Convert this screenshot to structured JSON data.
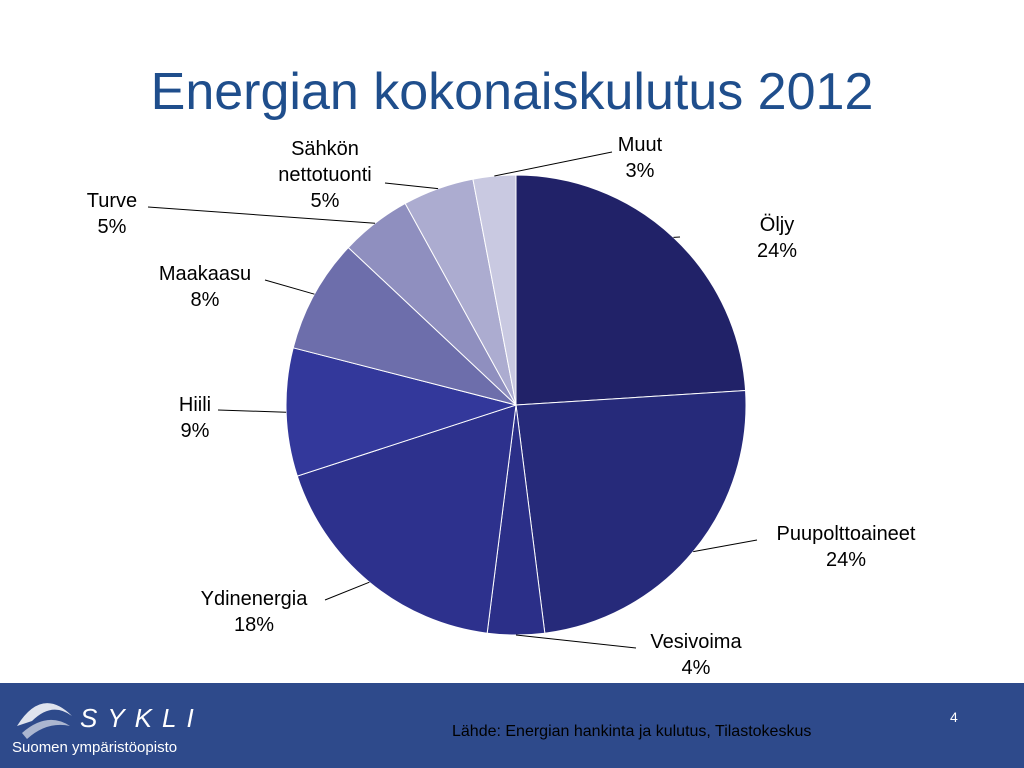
{
  "chart_data": {
    "type": "pie",
    "title": "Energian kokonaiskulutus 2012",
    "categories": [
      "Öljy",
      "Puupolttoaineet",
      "Vesivoima",
      "Ydinenergia",
      "Hiili",
      "Maakaasu",
      "Turve",
      "Sähkön nettotuonti",
      "Muut"
    ],
    "values": [
      24,
      24,
      4,
      18,
      9,
      8,
      5,
      5,
      3
    ],
    "value_labels": [
      "24%",
      "24%",
      "4%",
      "18%",
      "9%",
      "8%",
      "5%",
      "5%",
      "3%"
    ],
    "colors": [
      "#212268",
      "#262a7a",
      "#2b2f88",
      "#2d318d",
      "#33389b",
      "#6d6eab",
      "#8f8fbf",
      "#acacd0",
      "#c9c9e1"
    ]
  },
  "footer": {
    "logo_name": "SYKLI",
    "logo_subtitle": "Suomen ympäristöopisto",
    "source": "Lähde: Energian hankinta ja kulutus, Tilastokeskus",
    "page_number": "4"
  }
}
